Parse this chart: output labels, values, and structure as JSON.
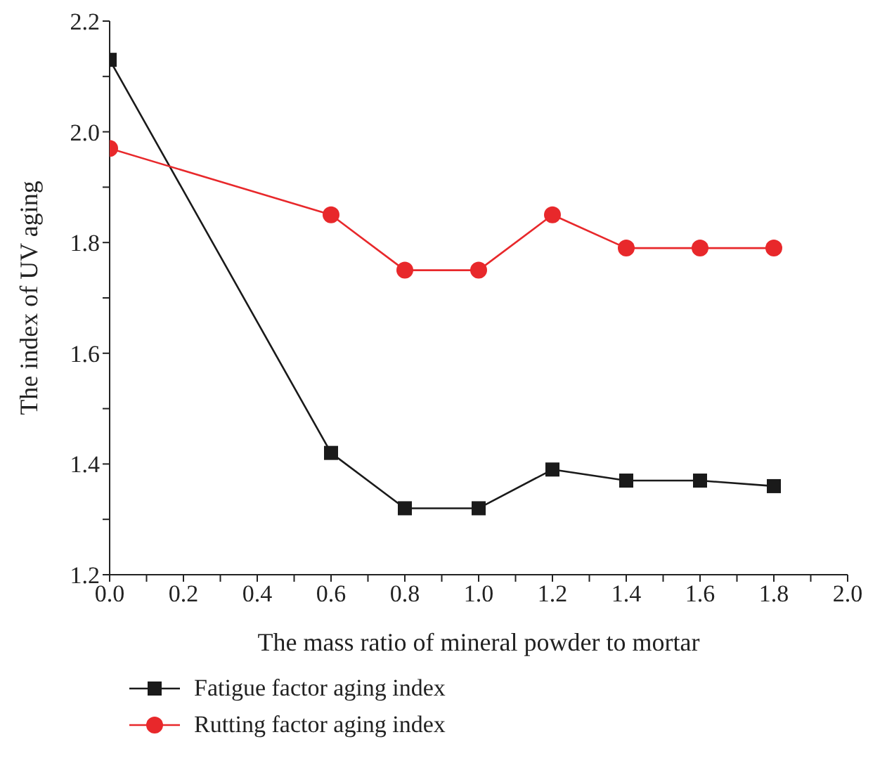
{
  "chart_data": {
    "type": "line",
    "xlabel": "The mass ratio of mineral powder to mortar",
    "ylabel": "The index of UV aging",
    "x": [
      0,
      0.6,
      0.8,
      1.0,
      1.2,
      1.4,
      1.6,
      1.8
    ],
    "series": [
      {
        "name": "Fatigue factor aging index",
        "color": "#1a1a1a",
        "marker": "square",
        "values": [
          2.13,
          1.42,
          1.32,
          1.32,
          1.39,
          1.37,
          1.37,
          1.36
        ]
      },
      {
        "name": "Rutting factor aging index",
        "color": "#e8282b",
        "marker": "circle",
        "values": [
          1.97,
          1.85,
          1.75,
          1.75,
          1.85,
          1.79,
          1.79,
          1.79
        ]
      }
    ],
    "xlim": [
      0,
      2.0
    ],
    "xticks": [
      {
        "value": 0,
        "label": "0.0"
      },
      {
        "value": 0.1,
        "label": null
      },
      {
        "value": 0.2,
        "label": "0.2"
      },
      {
        "value": 0.3,
        "label": null
      },
      {
        "value": 0.4,
        "label": "0.4"
      },
      {
        "value": 0.5,
        "label": null
      },
      {
        "value": 0.6,
        "label": "0.6"
      },
      {
        "value": 0.7,
        "label": null
      },
      {
        "value": 0.8,
        "label": "0.8"
      },
      {
        "value": 0.9,
        "label": null
      },
      {
        "value": 1.0,
        "label": "1.0"
      },
      {
        "value": 1.1,
        "label": null
      },
      {
        "value": 1.2,
        "label": "1.2"
      },
      {
        "value": 1.3,
        "label": null
      },
      {
        "value": 1.4,
        "label": "1.4"
      },
      {
        "value": 1.5,
        "label": null
      },
      {
        "value": 1.6,
        "label": "1.6"
      },
      {
        "value": 1.7,
        "label": null
      },
      {
        "value": 1.8,
        "label": "1.8"
      },
      {
        "value": 1.9,
        "label": null
      },
      {
        "value": 2.0,
        "label": "2.0"
      }
    ],
    "ylim": [
      1.2,
      2.2
    ],
    "yticks": [
      {
        "value": 1.2,
        "label": "1.2"
      },
      {
        "value": 1.3,
        "label": null
      },
      {
        "value": 1.4,
        "label": "1.4"
      },
      {
        "value": 1.5,
        "label": null
      },
      {
        "value": 1.6,
        "label": "1.6"
      },
      {
        "value": 1.7,
        "label": null
      },
      {
        "value": 1.8,
        "label": "1.8"
      },
      {
        "value": 1.9,
        "label": null
      },
      {
        "value": 2.0,
        "label": "2.0"
      },
      {
        "value": 2.1,
        "label": null
      },
      {
        "value": 2.2,
        "label": "2.2"
      }
    ],
    "grid": false,
    "legend": "bottom left",
    "line_style": "solid"
  }
}
